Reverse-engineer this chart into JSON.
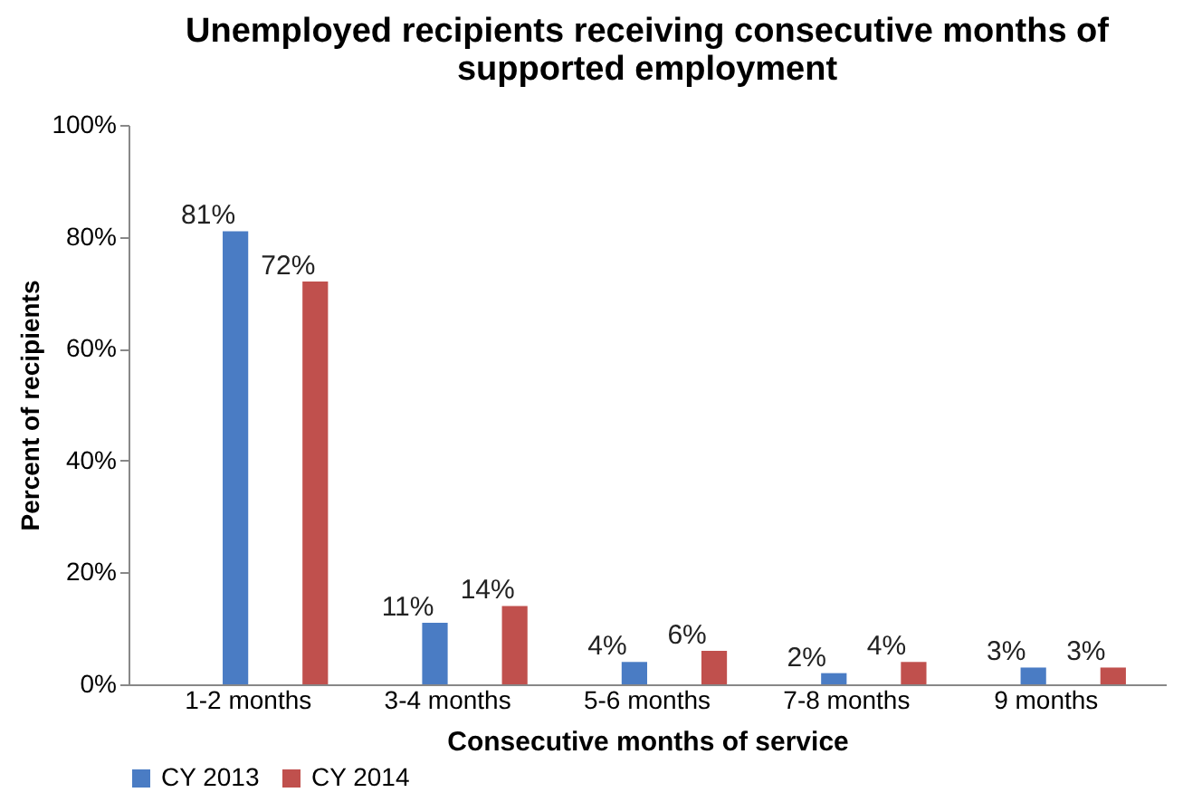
{
  "chart_data": {
    "type": "bar",
    "title": "Unemployed recipients receiving consecutive months of supported employment",
    "xlabel": "Consecutive months of service",
    "ylabel": "Percent of recipients",
    "categories": [
      "1-2 months",
      "3-4 months",
      "5-6 months",
      "7-8 months",
      "9 months"
    ],
    "series": [
      {
        "name": "CY 2013",
        "color": "#4a7cc4",
        "values": [
          81,
          11,
          4,
          2,
          3
        ],
        "value_labels": [
          "81%",
          "11%",
          "4%",
          "2%",
          "3%"
        ]
      },
      {
        "name": "CY 2014",
        "color": "#c0504d",
        "values": [
          72,
          14,
          6,
          4,
          3
        ],
        "value_labels": [
          "72%",
          "14%",
          "6%",
          "4%",
          "3%"
        ]
      }
    ],
    "ylim": [
      0,
      100
    ],
    "yticks": [
      {
        "value": 0,
        "label": "0%"
      },
      {
        "value": 20,
        "label": "20%"
      },
      {
        "value": 40,
        "label": "40%"
      },
      {
        "value": 60,
        "label": "60%"
      },
      {
        "value": 80,
        "label": "80%"
      },
      {
        "value": 100,
        "label": "100%"
      }
    ],
    "legend": "bottom"
  }
}
